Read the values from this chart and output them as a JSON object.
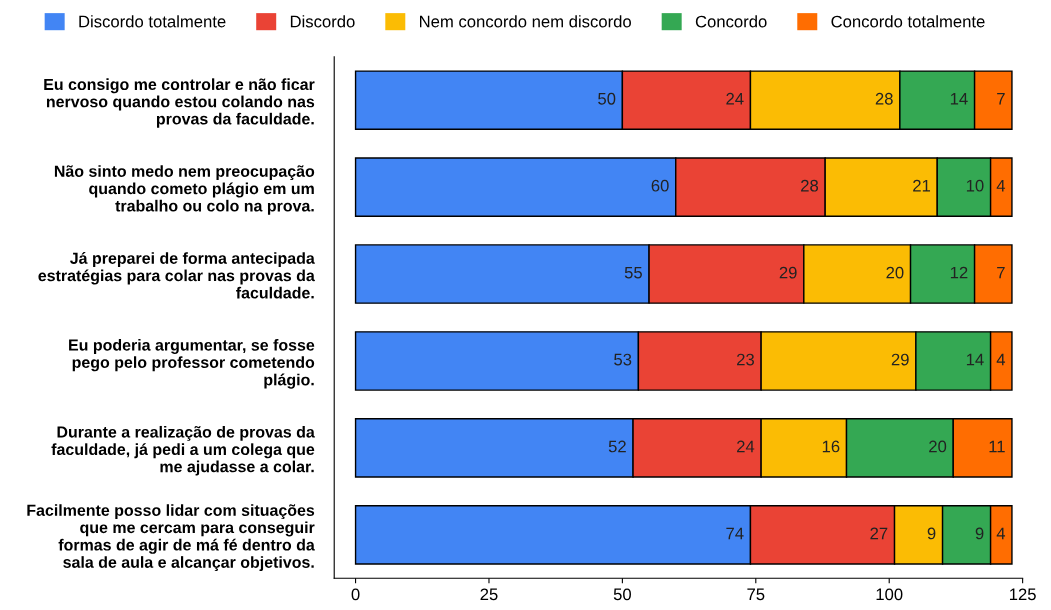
{
  "chart_data": {
    "type": "bar",
    "orientation": "horizontal",
    "stacked": true,
    "data_labels": true,
    "legend": "top",
    "grid": false,
    "categories": [
      "Eu consigo me controlar e não ficar\nnervoso quando estou colando nas\nprovas da faculdade.",
      "Não sinto medo nem preocupação\nquando cometo plágio em um\ntrabalho ou colo na prova.",
      "Já preparei de forma antecipada\nestratégias para colar nas provas da\nfaculdade.",
      "Eu poderia argumentar, se fosse\npego pelo professor cometendo\nplágio.",
      "Durante a realização de provas da\nfaculdade, já pedi a um colega que\nme ajudasse a colar.",
      "Facilmente posso lidar com situações\nque me cercam para conseguir\nformas de agir de má fé dentro da\nsala de aula e alcançar objetivos."
    ],
    "series": [
      {
        "name": "Discordo totalmente",
        "color": "#4285f4",
        "values": [
          50,
          60,
          55,
          53,
          52,
          74
        ]
      },
      {
        "name": "Discordo",
        "color": "#ea4335",
        "values": [
          24,
          28,
          29,
          23,
          24,
          27
        ]
      },
      {
        "name": "Nem concordo nem discordo",
        "color": "#fbbc04",
        "values": [
          28,
          21,
          20,
          29,
          16,
          9
        ]
      },
      {
        "name": "Concordo",
        "color": "#34a853",
        "values": [
          14,
          10,
          12,
          14,
          20,
          9
        ]
      },
      {
        "name": "Concordo totalmente",
        "color": "#ff6d01",
        "values": [
          7,
          4,
          7,
          4,
          11,
          4
        ]
      }
    ],
    "xlim": [
      -4,
      125
    ],
    "xticks": [
      0,
      25,
      50,
      75,
      100,
      125
    ]
  }
}
